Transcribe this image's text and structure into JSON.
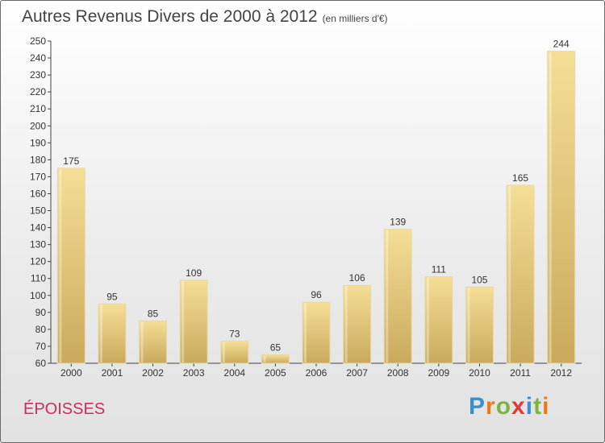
{
  "header": {
    "title": "Autres Revenus Divers de 2000 à 2012",
    "subtitle": "(en milliers d'€)"
  },
  "footer": {
    "commune": "ÉPOISSES",
    "logo_letters": [
      {
        "char": "P",
        "color": "#3a8fd0"
      },
      {
        "char": "r",
        "color": "#e87a1e"
      },
      {
        "char": "o",
        "color": "#7cb342"
      },
      {
        "char": "x",
        "color": "#e53935"
      },
      {
        "char": "i",
        "color": "#3a8fd0"
      },
      {
        "char": "t",
        "color": "#7cb342"
      },
      {
        "char": "i",
        "color": "#e87a1e"
      }
    ]
  },
  "chart_data": {
    "type": "bar",
    "title": "Autres Revenus Divers de 2000 à 2012",
    "subtitle": "(en milliers d'€)",
    "categories": [
      "2000",
      "2001",
      "2002",
      "2003",
      "2004",
      "2005",
      "2006",
      "2007",
      "2008",
      "2009",
      "2010",
      "2011",
      "2012"
    ],
    "values": [
      175,
      95,
      85,
      109,
      73,
      65,
      96,
      106,
      139,
      111,
      105,
      165,
      244
    ],
    "ylim": [
      60,
      250
    ],
    "ytick_step": 10,
    "grid": false,
    "bar_color_top": "#f5de96",
    "bar_color_bottom": "#c9aa5c"
  }
}
